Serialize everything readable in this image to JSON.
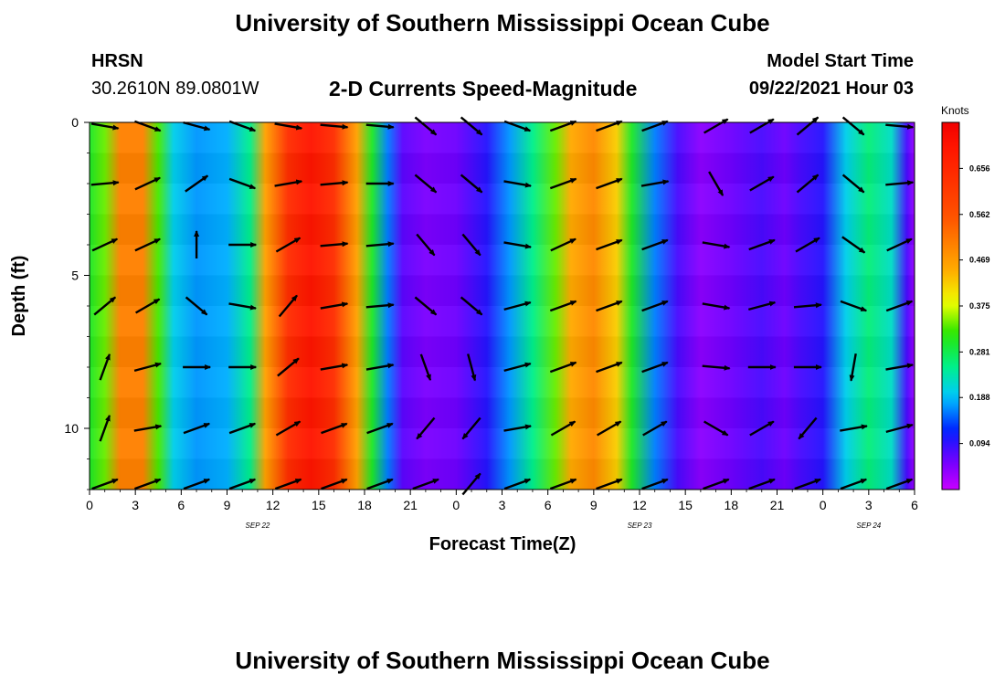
{
  "title": "University of Southern Mississippi Ocean Cube",
  "footer_title": "University of Southern Mississippi Ocean Cube",
  "station": {
    "name": "HRSN",
    "coords": "30.2610N  89.0801W"
  },
  "subtitle": "2-D Currents Speed-Magnitude",
  "model_start": {
    "label": "Model Start Time",
    "value": "09/22/2021 Hour 03"
  },
  "chart_data": {
    "type": "heatmap",
    "title": "2-D Currents Speed-Magnitude",
    "xlabel": "Forecast Time(Z)",
    "ylabel": "Depth (ft)",
    "xlim": [
      0,
      54
    ],
    "ylim": [
      0,
      12
    ],
    "x_ticks": [
      {
        "x": 0,
        "label": "0"
      },
      {
        "x": 3,
        "label": "3"
      },
      {
        "x": 6,
        "label": "6"
      },
      {
        "x": 9,
        "label": "9"
      },
      {
        "x": 12,
        "label": "12"
      },
      {
        "x": 15,
        "label": "15"
      },
      {
        "x": 18,
        "label": "18"
      },
      {
        "x": 21,
        "label": "21"
      },
      {
        "x": 24,
        "label": "0"
      },
      {
        "x": 27,
        "label": "3"
      },
      {
        "x": 30,
        "label": "6"
      },
      {
        "x": 33,
        "label": "9"
      },
      {
        "x": 36,
        "label": "12"
      },
      {
        "x": 39,
        "label": "15"
      },
      {
        "x": 42,
        "label": "18"
      },
      {
        "x": 45,
        "label": "21"
      },
      {
        "x": 48,
        "label": "0"
      },
      {
        "x": 51,
        "label": "3"
      },
      {
        "x": 54,
        "label": "6"
      }
    ],
    "y_ticks": [
      {
        "y": 0,
        "label": "0"
      },
      {
        "y": 5,
        "label": "5"
      },
      {
        "y": 10,
        "label": "10"
      }
    ],
    "date_labels": [
      {
        "x": 11,
        "label": "SEP 22"
      },
      {
        "x": 36,
        "label": "SEP 23"
      },
      {
        "x": 51,
        "label": "SEP 24"
      }
    ],
    "colorbar": {
      "unit": "Knots",
      "ticks": [
        "0.656",
        "0.562",
        "0.469",
        "0.375",
        "0.281",
        "0.188",
        "0.094"
      ],
      "tick_values": [
        0.656,
        0.562,
        0.469,
        0.375,
        0.281,
        0.188,
        0.094
      ],
      "range": [
        0,
        0.75
      ]
    },
    "speed_profile": [
      {
        "x": 0,
        "v": 0.3
      },
      {
        "x": 1,
        "v": 0.34
      },
      {
        "x": 2,
        "v": 0.5
      },
      {
        "x": 3.5,
        "v": 0.5
      },
      {
        "x": 4.5,
        "v": 0.33
      },
      {
        "x": 5.5,
        "v": 0.2
      },
      {
        "x": 7,
        "v": 0.17
      },
      {
        "x": 9,
        "v": 0.18
      },
      {
        "x": 10.5,
        "v": 0.25
      },
      {
        "x": 11.5,
        "v": 0.46
      },
      {
        "x": 13,
        "v": 0.64
      },
      {
        "x": 14.5,
        "v": 0.7
      },
      {
        "x": 16,
        "v": 0.64
      },
      {
        "x": 17.5,
        "v": 0.46
      },
      {
        "x": 18.5,
        "v": 0.3
      },
      {
        "x": 19.5,
        "v": 0.16
      },
      {
        "x": 20.5,
        "v": 0.07
      },
      {
        "x": 22,
        "v": 0.05
      },
      {
        "x": 24,
        "v": 0.06
      },
      {
        "x": 26,
        "v": 0.1
      },
      {
        "x": 27.5,
        "v": 0.17
      },
      {
        "x": 29,
        "v": 0.25
      },
      {
        "x": 30.5,
        "v": 0.34
      },
      {
        "x": 31.5,
        "v": 0.45
      },
      {
        "x": 33,
        "v": 0.49
      },
      {
        "x": 34.5,
        "v": 0.42
      },
      {
        "x": 35.5,
        "v": 0.3
      },
      {
        "x": 37,
        "v": 0.16
      },
      {
        "x": 38.5,
        "v": 0.08
      },
      {
        "x": 40,
        "v": 0.04
      },
      {
        "x": 42,
        "v": 0.06
      },
      {
        "x": 44,
        "v": 0.08
      },
      {
        "x": 45.5,
        "v": 0.06
      },
      {
        "x": 46.5,
        "v": 0.08
      },
      {
        "x": 48,
        "v": 0.1
      },
      {
        "x": 49.5,
        "v": 0.2
      },
      {
        "x": 51,
        "v": 0.26
      },
      {
        "x": 52.5,
        "v": 0.22
      },
      {
        "x": 53.5,
        "v": 0.08
      },
      {
        "x": 54,
        "v": 0.03
      }
    ],
    "vector_columns": [
      1,
      3.8,
      7,
      10,
      13,
      16,
      19,
      22,
      25,
      28,
      31,
      34,
      37,
      41,
      44,
      47,
      50,
      53
    ],
    "vector_depths": [
      0,
      2,
      4,
      6,
      8,
      10,
      12
    ],
    "vector_directions_deg": [
      [
        350,
        340,
        345,
        340,
        350,
        355,
        355,
        320,
        320,
        340,
        20,
        20,
        20,
        30,
        30,
        40,
        320,
        355
      ],
      [
        5,
        25,
        35,
        340,
        10,
        5,
        0,
        320,
        320,
        350,
        20,
        20,
        10,
        300,
        30,
        40,
        320,
        5
      ],
      [
        25,
        25,
        90,
        0,
        30,
        5,
        5,
        310,
        310,
        350,
        25,
        20,
        20,
        350,
        20,
        30,
        325,
        25
      ],
      [
        40,
        30,
        320,
        350,
        50,
        10,
        5,
        320,
        320,
        15,
        20,
        20,
        20,
        350,
        15,
        5,
        340,
        20
      ],
      [
        70,
        15,
        0,
        0,
        40,
        10,
        10,
        290,
        285,
        15,
        20,
        20,
        20,
        355,
        0,
        0,
        260,
        10
      ],
      [
        70,
        10,
        20,
        20,
        30,
        20,
        20,
        230,
        230,
        10,
        30,
        30,
        30,
        330,
        30,
        230,
        10,
        15
      ],
      [
        20,
        20,
        20,
        20,
        20,
        20,
        20,
        20,
        50,
        20,
        20,
        20,
        20,
        20,
        20,
        20,
        20,
        20
      ]
    ]
  }
}
